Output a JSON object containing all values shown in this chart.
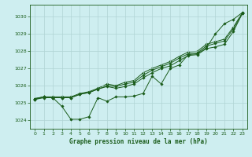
{
  "title": "Graphe pression niveau de la mer (hPa)",
  "background_color": "#ceeef0",
  "grid_color": "#b0d4d4",
  "line_color": "#1a5c1a",
  "marker_color": "#1a5c1a",
  "xlim": [
    -0.5,
    23.5
  ],
  "ylim": [
    1023.5,
    1030.7
  ],
  "yticks": [
    1024,
    1025,
    1026,
    1027,
    1028,
    1029,
    1030
  ],
  "xticks": [
    0,
    1,
    2,
    3,
    4,
    5,
    6,
    7,
    8,
    9,
    10,
    11,
    12,
    13,
    14,
    15,
    16,
    17,
    18,
    19,
    20,
    21,
    22,
    23
  ],
  "line1": [
    1025.2,
    1025.35,
    1025.3,
    1024.8,
    1024.05,
    1024.05,
    1024.2,
    1025.3,
    1025.1,
    1025.35,
    1025.35,
    1025.4,
    1025.55,
    1026.55,
    1026.1,
    1027.0,
    1027.2,
    1027.8,
    1027.85,
    1028.2,
    1029.0,
    1029.6,
    1029.85,
    1030.25
  ],
  "line2": [
    1025.25,
    1025.35,
    1025.3,
    1025.3,
    1025.3,
    1025.5,
    1025.6,
    1025.8,
    1025.95,
    1025.85,
    1025.95,
    1026.1,
    1026.45,
    1026.75,
    1027.0,
    1027.15,
    1027.45,
    1027.75,
    1027.8,
    1028.15,
    1028.25,
    1028.4,
    1029.15,
    1030.2
  ],
  "line3": [
    1025.2,
    1025.3,
    1025.3,
    1025.3,
    1025.3,
    1025.5,
    1025.6,
    1025.8,
    1026.0,
    1025.95,
    1026.1,
    1026.2,
    1026.6,
    1026.9,
    1027.1,
    1027.3,
    1027.6,
    1027.85,
    1027.9,
    1028.3,
    1028.45,
    1028.6,
    1029.3,
    1030.2
  ],
  "line4": [
    1025.25,
    1025.35,
    1025.35,
    1025.35,
    1025.35,
    1025.55,
    1025.65,
    1025.85,
    1026.1,
    1026.0,
    1026.2,
    1026.3,
    1026.75,
    1027.0,
    1027.2,
    1027.4,
    1027.7,
    1027.95,
    1028.0,
    1028.4,
    1028.55,
    1028.7,
    1029.4,
    1030.25
  ]
}
